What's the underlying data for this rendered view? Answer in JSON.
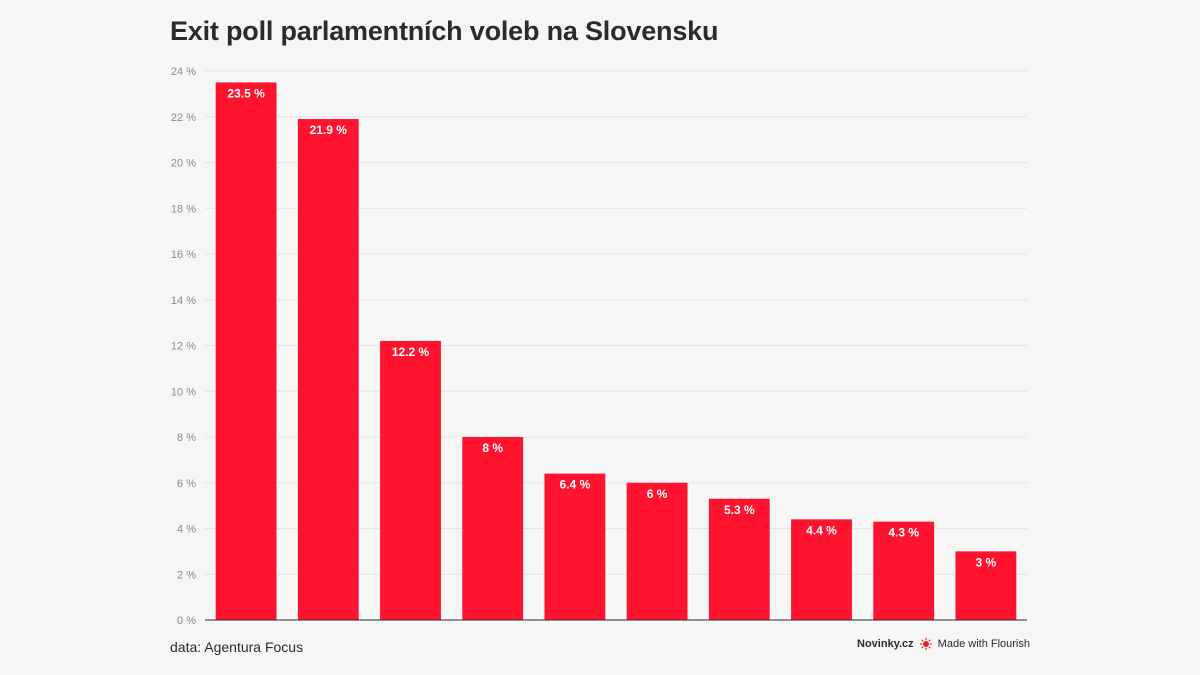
{
  "title": "Exit poll parlamentních voleb na Slovensku",
  "source": "data: Agentura Focus",
  "brand": {
    "publisher": "Novinky.cz",
    "credit": "Made with Flourish"
  },
  "colors": {
    "bar": "#ff1430",
    "background": "#f6f6f6",
    "text": "#2b2b2b"
  },
  "chart_data": {
    "type": "bar",
    "categories": [
      "",
      "",
      "",
      "",
      "",
      "",
      "",
      "",
      "",
      ""
    ],
    "values": [
      23.5,
      21.9,
      12.2,
      8,
      6.4,
      6,
      5.3,
      4.4,
      4.3,
      3
    ],
    "data_labels": [
      "23.5 %",
      "21.9 %",
      "12.2 %",
      "8 %",
      "6.4 %",
      "6 %",
      "5.3 %",
      "4.4 %",
      "4.3 %",
      "3 %"
    ],
    "ylim": [
      0,
      24
    ],
    "y_ticks": [
      0,
      2,
      4,
      6,
      8,
      10,
      12,
      14,
      16,
      18,
      20,
      22,
      24
    ],
    "y_tick_labels": [
      "0 %",
      "2 %",
      "4 %",
      "6 %",
      "8 %",
      "10 %",
      "12 %",
      "14 %",
      "16 %",
      "18 %",
      "20 %",
      "22 %",
      "24 %"
    ],
    "grid": true,
    "legend": "none"
  }
}
